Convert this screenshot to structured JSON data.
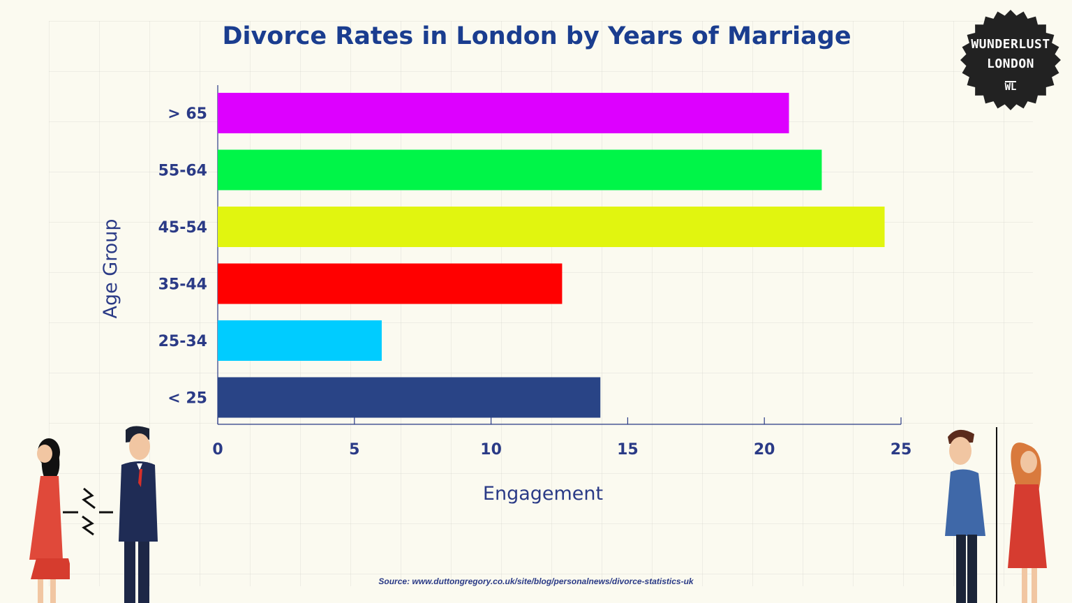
{
  "title": "Divorce Rates in London by Years of Marriage",
  "badge": {
    "line1": "WUNDERLUST",
    "line2": "LONDON",
    "mark": "WL"
  },
  "source": "Source: www.duttongregory.co.uk/site/blog/personalnews/divorce-statistics-uk",
  "chart_data": {
    "type": "bar",
    "orientation": "horizontal",
    "title": "Divorce Rates in London by Years of Marriage",
    "xlabel": "Engagement",
    "ylabel": "Age Group",
    "categories": [
      "> 65",
      "55-64",
      "45-54",
      "35-44",
      "25-34",
      "< 25"
    ],
    "values": [
      20.9,
      22.1,
      24.4,
      12.6,
      6.0,
      14.0
    ],
    "colors": [
      "#dd00ff",
      "#00f548",
      "#e1f50f",
      "#ff0000",
      "#00ccff",
      "#294486"
    ],
    "xlim": [
      0,
      25
    ],
    "xticks": [
      0,
      5,
      10,
      15,
      20,
      25
    ],
    "grid": false,
    "legend": "none"
  },
  "colors": {
    "title": "#1a3d8f",
    "axis_text": "#2a3a86",
    "badge_bg": "#222222"
  },
  "icons": [
    "woman-left-figure",
    "man-suit-figure",
    "lightning-icon",
    "man-sad-figure",
    "woman-sad-figure"
  ]
}
